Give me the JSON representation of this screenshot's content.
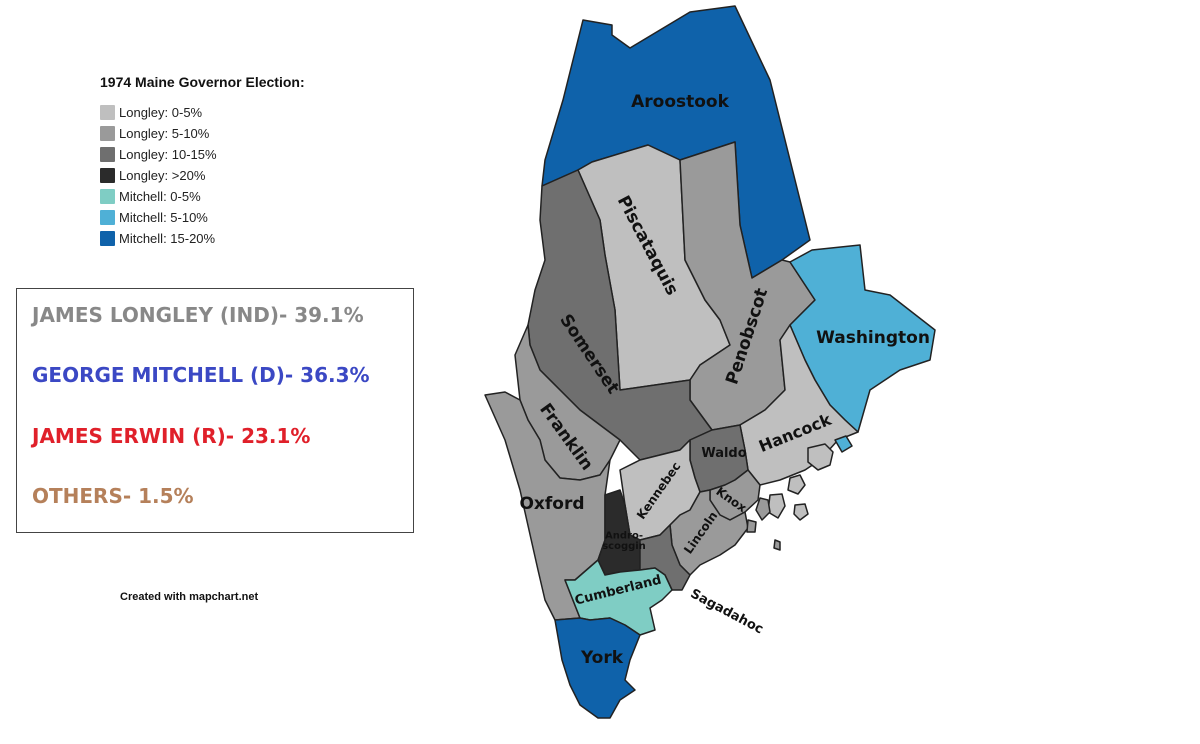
{
  "legend": {
    "title": "1974 Maine Governor Election:",
    "items": [
      {
        "label": "Longley: 0-5%",
        "color": "#bfbfbf"
      },
      {
        "label": "Longley: 5-10%",
        "color": "#9a9a9a"
      },
      {
        "label": "Longley: 10-15%",
        "color": "#6f6f6f"
      },
      {
        "label": "Longley: >20%",
        "color": "#2b2b2b"
      },
      {
        "label": "Mitchell: 0-5%",
        "color": "#7fcdc4"
      },
      {
        "label": "Mitchell: 5-10%",
        "color": "#4fb0d6"
      },
      {
        "label": "Mitchell: 15-20%",
        "color": "#0f62aa"
      }
    ]
  },
  "results": [
    {
      "text": "JAMES LONGLEY (IND)- 39.1%",
      "color": "#888888"
    },
    {
      "text": "GEORGE MITCHELL (D)- 36.3%",
      "color": "#3b48c4"
    },
    {
      "text": "JAMES ERWIN (R)- 23.1%",
      "color": "#e0202a"
    },
    {
      "text": "OTHERS- 1.5%",
      "color": "#b5805a"
    }
  ],
  "credit": "Created with mapchart.net",
  "counties": {
    "aroostook": {
      "name": "Aroostook",
      "color": "#0f62aa"
    },
    "piscataquis": {
      "name": "Piscataquis",
      "color": "#bfbfbf"
    },
    "penobscot": {
      "name": "Penobscot",
      "color": "#9a9a9a"
    },
    "washington": {
      "name": "Washington",
      "color": "#4fb0d6"
    },
    "somerset": {
      "name": "Somerset",
      "color": "#6f6f6f"
    },
    "franklin": {
      "name": "Franklin",
      "color": "#9a9a9a"
    },
    "oxford": {
      "name": "Oxford",
      "color": "#9a9a9a"
    },
    "hancock": {
      "name": "Hancock",
      "color": "#bfbfbf"
    },
    "waldo": {
      "name": "Waldo",
      "color": "#6f6f6f"
    },
    "kennebec": {
      "name": "Kennebec",
      "color": "#bfbfbf"
    },
    "knox": {
      "name": "Knox",
      "color": "#9a9a9a"
    },
    "lincoln": {
      "name": "Lincoln",
      "color": "#9a9a9a"
    },
    "androscoggin": {
      "name": "Andro-\nscoggin",
      "color": "#2b2b2b"
    },
    "sagadahoc": {
      "name": "Sagadahoc",
      "color": "#6f6f6f"
    },
    "cumberland": {
      "name": "Cumberland",
      "color": "#7fcdc4"
    },
    "york": {
      "name": "York",
      "color": "#0f62aa"
    }
  }
}
